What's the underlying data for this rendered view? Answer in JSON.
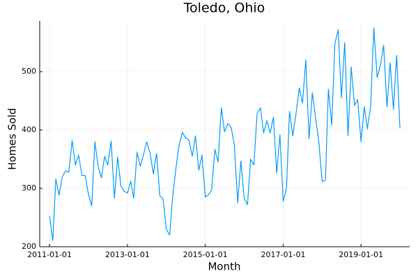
{
  "chart_data": {
    "type": "line",
    "title": "Toledo, Ohio",
    "x_label": "Month",
    "y_label": "Homes Sold",
    "x": [
      "2011-01-01",
      "2011-02-01",
      "2011-03-01",
      "2011-04-01",
      "2011-05-01",
      "2011-06-01",
      "2011-07-01",
      "2011-08-01",
      "2011-09-01",
      "2011-10-01",
      "2011-11-01",
      "2011-12-01",
      "2012-01-01",
      "2012-02-01",
      "2012-03-01",
      "2012-04-01",
      "2012-05-01",
      "2012-06-01",
      "2012-07-01",
      "2012-08-01",
      "2012-09-01",
      "2012-10-01",
      "2012-11-01",
      "2012-12-01",
      "2013-01-01",
      "2013-02-01",
      "2013-03-01",
      "2013-04-01",
      "2013-05-01",
      "2013-06-01",
      "2013-07-01",
      "2013-08-01",
      "2013-09-01",
      "2013-10-01",
      "2013-11-01",
      "2013-12-01",
      "2014-01-01",
      "2014-02-01",
      "2014-03-01",
      "2014-04-01",
      "2014-05-01",
      "2014-06-01",
      "2014-07-01",
      "2014-08-01",
      "2014-09-01",
      "2014-10-01",
      "2014-11-01",
      "2014-12-01",
      "2015-01-01",
      "2015-02-01",
      "2015-03-01",
      "2015-04-01",
      "2015-05-01",
      "2015-06-01",
      "2015-07-01",
      "2015-08-01",
      "2015-09-01",
      "2015-10-01",
      "2015-11-01",
      "2015-12-01",
      "2016-01-01",
      "2016-02-01",
      "2016-03-01",
      "2016-04-01",
      "2016-05-01",
      "2016-06-01",
      "2016-07-01",
      "2016-08-01",
      "2016-09-01",
      "2016-10-01",
      "2016-11-01",
      "2016-12-01",
      "2017-01-01",
      "2017-02-01",
      "2017-03-01",
      "2017-04-01",
      "2017-05-01",
      "2017-06-01",
      "2017-07-01",
      "2017-08-01",
      "2017-09-01",
      "2017-10-01",
      "2017-11-01",
      "2017-12-01",
      "2018-01-01",
      "2018-02-01",
      "2018-03-01",
      "2018-04-01",
      "2018-05-01",
      "2018-06-01",
      "2018-07-01",
      "2018-08-01",
      "2018-09-01",
      "2018-10-01",
      "2018-11-01",
      "2018-12-01",
      "2019-01-01",
      "2019-02-01",
      "2019-03-01",
      "2019-04-01",
      "2019-05-01",
      "2019-06-01",
      "2019-07-01",
      "2019-08-01",
      "2019-09-01",
      "2019-10-01",
      "2019-11-01",
      "2019-12-01",
      "2020-01-01"
    ],
    "series": [
      {
        "color": "#009af9",
        "values": [
          253,
          211,
          316,
          288,
          320,
          330,
          328,
          382,
          340,
          357,
          322,
          322,
          290,
          270,
          380,
          338,
          318,
          355,
          340,
          381,
          283,
          354,
          304,
          295,
          292,
          312,
          283,
          362,
          338,
          358,
          380,
          360,
          325,
          360,
          287,
          282,
          230,
          220,
          285,
          335,
          375,
          396,
          386,
          383,
          355,
          390,
          331,
          357,
          285,
          289,
          297,
          367,
          345,
          438,
          397,
          411,
          404,
          375,
          275,
          347,
          283,
          272,
          350,
          340,
          428,
          438,
          395,
          416,
          395,
          422,
          326,
          392,
          278,
          300,
          432,
          390,
          428,
          472,
          446,
          520,
          385,
          464,
          420,
          380,
          312,
          314,
          470,
          408,
          548,
          572,
          455,
          550,
          390,
          508,
          442,
          452,
          380,
          440,
          402,
          440,
          575,
          490,
          510,
          545,
          440,
          515,
          435,
          528,
          403
        ]
      }
    ],
    "xlim": [
      "2010-10-01",
      "2020-04-01"
    ],
    "xticks": [
      "2011-01-01",
      "2013-01-01",
      "2015-01-01",
      "2017-01-01",
      "2019-01-01"
    ],
    "ylim": [
      200,
      587
    ],
    "yticks": [
      200,
      300,
      400,
      500
    ],
    "grid": true
  }
}
